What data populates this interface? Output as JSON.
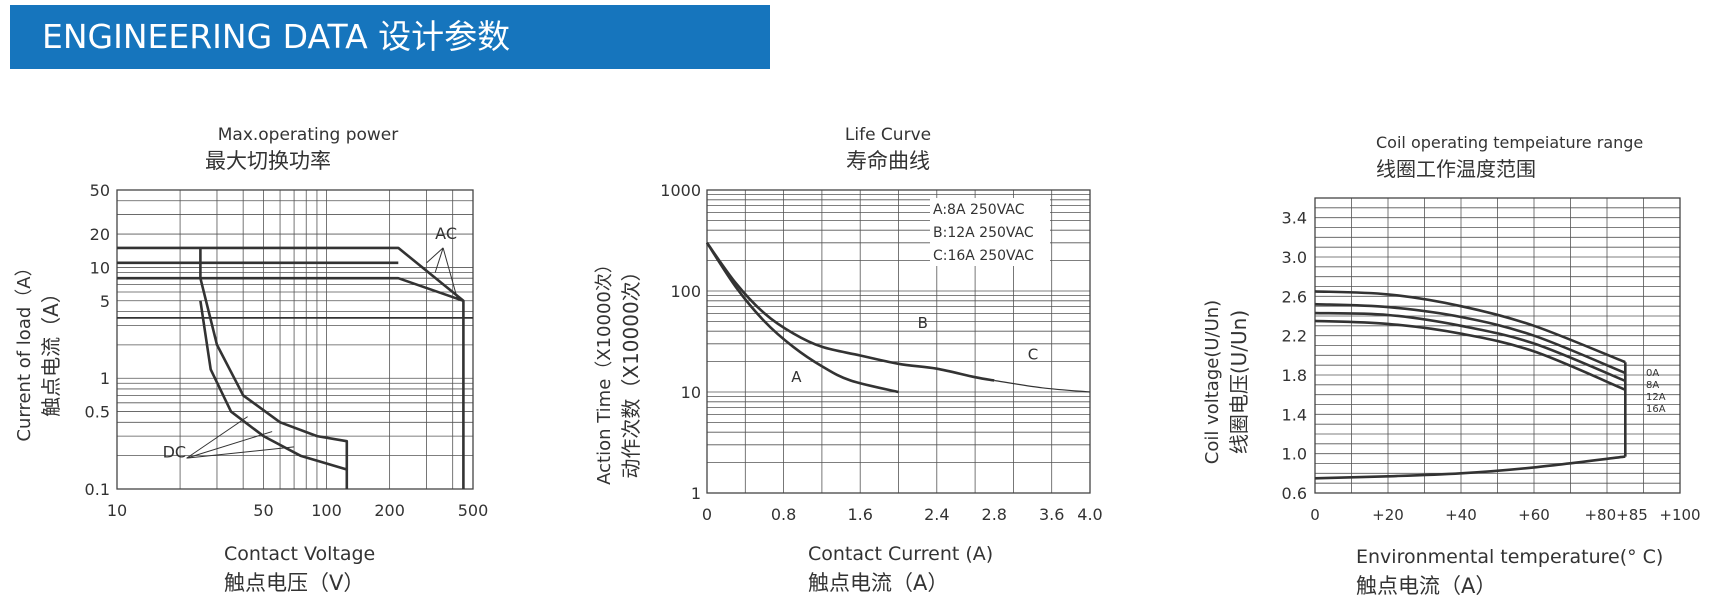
{
  "header": {
    "title": "ENGINEERING DATA 设计参数"
  },
  "chart_data": [
    {
      "type": "line",
      "title": "Max.operating power",
      "title_cn": "最大切换功率",
      "xlabel": "Contact Voltage",
      "xlabel_cn": "触点电压（V）",
      "ylabel": "Current of load（A）",
      "ylabel_cn": "触点电流（A）",
      "x_scale": "log",
      "y_scale": "log",
      "xlim": [
        10,
        500
      ],
      "ylim": [
        0.1,
        50
      ],
      "x_ticks": [
        "10",
        "50",
        "100",
        "200",
        "500"
      ],
      "y_ticks": [
        "50",
        "20",
        "10",
        "5",
        "1",
        "0.5",
        "0.1"
      ],
      "annotations": [
        "AC",
        "DC"
      ],
      "series": [
        {
          "group": "AC",
          "x": [
            10,
            220,
            450,
            450
          ],
          "y": [
            15,
            15,
            5,
            0.1
          ]
        },
        {
          "group": "AC",
          "x": [
            10,
            220,
            450
          ],
          "y": [
            8,
            8,
            5
          ]
        },
        {
          "group": "AC",
          "x": [
            10,
            500
          ],
          "y": [
            3.5,
            3.5
          ]
        },
        {
          "group": "DC",
          "x": [
            25,
            25,
            30,
            40,
            60,
            90,
            125,
            125
          ],
          "y": [
            15,
            8,
            2,
            0.7,
            0.4,
            0.3,
            0.27,
            0.1
          ]
        },
        {
          "group": "DC",
          "x": [
            25,
            28,
            35,
            50,
            75,
            125
          ],
          "y": [
            5,
            1.2,
            0.5,
            0.3,
            0.2,
            0.15
          ]
        },
        {
          "group": "AC-extra",
          "x": [
            10,
            220
          ],
          "y": [
            11,
            11
          ]
        }
      ]
    },
    {
      "type": "line",
      "title": "Life Curve",
      "title_cn": "寿命曲线",
      "xlabel": "Contact Current (A)",
      "xlabel_cn": "触点电流（A）",
      "ylabel": "Action Time（X10000次）",
      "ylabel_cn": "动作次数（X10000次）",
      "y_scale": "log",
      "xlim": [
        0,
        4.0
      ],
      "ylim": [
        1,
        1000
      ],
      "x_ticks": [
        "0",
        "0.8",
        "1.6",
        "2.4",
        "2.8",
        "3.6",
        "4.0"
      ],
      "y_ticks": [
        "1000",
        "100",
        "10",
        "1"
      ],
      "legend_entries": [
        "A:8A 250VAC",
        "B:12A 250VAC",
        "C:16A 250VAC"
      ],
      "legend_position": "top-right",
      "curve_labels": [
        "A",
        "B",
        "C"
      ],
      "series": [
        {
          "name": "A",
          "x": [
            0,
            0.3,
            0.6,
            0.9,
            1.2,
            1.5,
            2.0
          ],
          "y": [
            300,
            110,
            50,
            28,
            18,
            13,
            10
          ]
        },
        {
          "name": "B",
          "x": [
            0,
            0.3,
            0.6,
            0.9,
            1.2,
            1.6,
            2.0,
            2.4,
            2.8,
            3.0
          ],
          "y": [
            300,
            120,
            60,
            38,
            28,
            23,
            19,
            17,
            14,
            13
          ]
        },
        {
          "name": "C",
          "x": [
            3.0,
            3.5,
            4.0
          ],
          "y": [
            13,
            11,
            10
          ]
        }
      ]
    },
    {
      "type": "line",
      "title": "Coil operating tempeiature range",
      "title_cn": "线圈工作温度范围",
      "xlabel": "Environmental temperature(° C)",
      "xlabel_cn": "触点电流（A）",
      "ylabel": "Coil voltage(U/Un)",
      "ylabel_cn": "线圈电压(U/Un)",
      "xlim": [
        0,
        100
      ],
      "ylim": [
        0.6,
        3.6
      ],
      "x_ticks": [
        "0",
        "+20",
        "+40",
        "+60",
        "+80+85",
        "+100"
      ],
      "y_ticks": [
        "3.4",
        "3.0",
        "2.6",
        "2.2",
        "1.8",
        "1.4",
        "1.0",
        "0.6"
      ],
      "curve_labels": [
        "0A",
        "8A",
        "12A",
        "16A"
      ],
      "series": [
        {
          "name": "0A",
          "x": [
            0,
            20,
            40,
            60,
            85
          ],
          "y": [
            2.65,
            2.62,
            2.5,
            2.3,
            1.93
          ]
        },
        {
          "name": "8A",
          "x": [
            0,
            20,
            40,
            60,
            85
          ],
          "y": [
            2.52,
            2.49,
            2.39,
            2.2,
            1.82
          ]
        },
        {
          "name": "12A",
          "x": [
            0,
            20,
            40,
            60,
            85
          ],
          "y": [
            2.43,
            2.41,
            2.3,
            2.12,
            1.74
          ]
        },
        {
          "name": "16A",
          "x": [
            0,
            20,
            40,
            60,
            85
          ],
          "y": [
            2.35,
            2.32,
            2.22,
            2.04,
            1.65
          ]
        },
        {
          "name": "lower",
          "x": [
            0,
            20,
            40,
            60,
            85
          ],
          "y": [
            0.75,
            0.77,
            0.8,
            0.86,
            0.97
          ]
        }
      ]
    }
  ]
}
